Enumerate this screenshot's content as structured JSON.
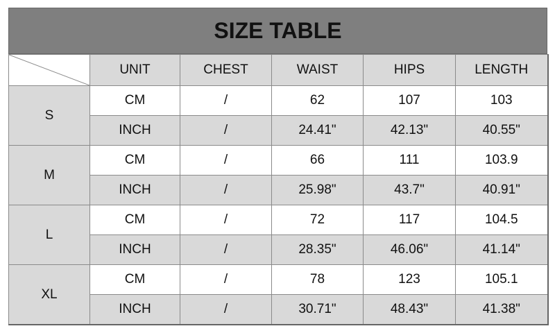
{
  "title": "SIZE TABLE",
  "headers": [
    "UNIT",
    "CHEST",
    "WAIST",
    "HIPS",
    "LENGTH"
  ],
  "colors": {
    "title_bg": "#7f7f7f",
    "shaded_cell": "#d9d9d9",
    "border": "#8a8a8a"
  },
  "sizes": [
    {
      "size": "S",
      "rows": [
        {
          "unit": "CM",
          "chest": "/",
          "waist": "62",
          "hips": "107",
          "length": "103"
        },
        {
          "unit": "INCH",
          "chest": "/",
          "waist": "24.41\"",
          "hips": "42.13\"",
          "length": "40.55\""
        }
      ]
    },
    {
      "size": "M",
      "rows": [
        {
          "unit": "CM",
          "chest": "/",
          "waist": "66",
          "hips": "111",
          "length": "103.9"
        },
        {
          "unit": "INCH",
          "chest": "/",
          "waist": "25.98\"",
          "hips": "43.7\"",
          "length": "40.91\""
        }
      ]
    },
    {
      "size": "L",
      "rows": [
        {
          "unit": "CM",
          "chest": "/",
          "waist": "72",
          "hips": "117",
          "length": "104.5"
        },
        {
          "unit": "INCH",
          "chest": "/",
          "waist": "28.35\"",
          "hips": "46.06\"",
          "length": "41.14\""
        }
      ]
    },
    {
      "size": "XL",
      "rows": [
        {
          "unit": "CM",
          "chest": "/",
          "waist": "78",
          "hips": "123",
          "length": "105.1"
        },
        {
          "unit": "INCH",
          "chest": "/",
          "waist": "30.71\"",
          "hips": "48.43\"",
          "length": "41.38\""
        }
      ]
    }
  ]
}
